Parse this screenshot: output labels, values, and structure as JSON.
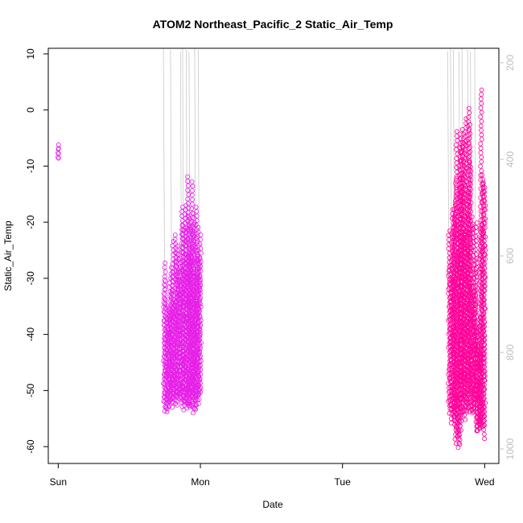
{
  "chart_data": {
    "type": "scatter",
    "title": "ATOM2 Northeast_Pacific_2 Static_Air_Temp",
    "xlabel": "Date",
    "ylabel": "Static_Air_Temp",
    "x_ticks": [
      "Sun",
      "Mon",
      "Tue",
      "Wed"
    ],
    "xlim_days": [
      -0.07,
      3.1
    ],
    "ylim": [
      -63,
      11
    ],
    "y_ticks": [
      10,
      0,
      -10,
      -20,
      -30,
      -40,
      -50,
      -60
    ],
    "secondary_y": {
      "label": "",
      "ticks": [
        200,
        400,
        600,
        800,
        1000
      ],
      "lim": [
        1030,
        170
      ],
      "reversed": true,
      "color": "#bdbdbd"
    },
    "grid": false,
    "legend": "none",
    "colors": {
      "early": "#e61ee6",
      "late": "#ff0099",
      "pressure": "#c8c8c8"
    },
    "series": [
      {
        "segments": [
          {
            "day_start": 0.0,
            "day_end": 0.0,
            "temp_min": -8.7,
            "temp_max": -5.0,
            "color": "early"
          },
          {
            "day_start": 0.745,
            "day_end": 0.8,
            "temp_min": -53.8,
            "temp_max": -25.0,
            "color": "early"
          },
          {
            "day_start": 0.8,
            "day_end": 0.84,
            "temp_min": -53.0,
            "temp_max": -21.5,
            "color": "early"
          },
          {
            "day_start": 0.84,
            "day_end": 0.88,
            "temp_min": -53.0,
            "temp_max": -17.0,
            "color": "early"
          },
          {
            "day_start": 0.88,
            "day_end": 0.915,
            "temp_min": -53.5,
            "temp_max": -14.0,
            "color": "early"
          },
          {
            "day_start": 0.915,
            "day_end": 0.95,
            "temp_min": -54.2,
            "temp_max": -8.3,
            "color": "early"
          },
          {
            "day_start": 0.95,
            "day_end": 0.975,
            "temp_min": -54.0,
            "temp_max": -15.5,
            "color": "early"
          },
          {
            "day_start": 0.975,
            "day_end": 1.0,
            "temp_min": -53.5,
            "temp_max": -8.8,
            "color": "early"
          },
          {
            "day_start": 2.75,
            "day_end": 2.79,
            "temp_min": -55.8,
            "temp_max": -16.8,
            "color": "late"
          },
          {
            "day_start": 2.79,
            "day_end": 2.83,
            "temp_min": -60.4,
            "temp_max": -2.5,
            "color": "late"
          },
          {
            "day_start": 2.83,
            "day_end": 2.86,
            "temp_min": -55.5,
            "temp_max": 2.0,
            "color": "late"
          },
          {
            "day_start": 2.86,
            "day_end": 2.9,
            "temp_min": -54.5,
            "temp_max": 4.4,
            "color": "late"
          },
          {
            "day_start": 2.9,
            "day_end": 2.94,
            "temp_min": -54.0,
            "temp_max": -18.0,
            "color": "late"
          },
          {
            "day_start": 2.94,
            "day_end": 2.97,
            "temp_min": -58.0,
            "temp_max": -35.0,
            "color": "late"
          },
          {
            "day_start": 2.97,
            "day_end": 3.0,
            "temp_min": -59.5,
            "temp_max": 8.0,
            "color": "late"
          }
        ]
      }
    ],
    "pressure_spikes_days": [
      0.74,
      0.79,
      0.86,
      0.875,
      0.9,
      0.92,
      0.96,
      0.985,
      2.74,
      2.76,
      2.78,
      2.82,
      2.84,
      2.88,
      2.9,
      2.93
    ]
  }
}
